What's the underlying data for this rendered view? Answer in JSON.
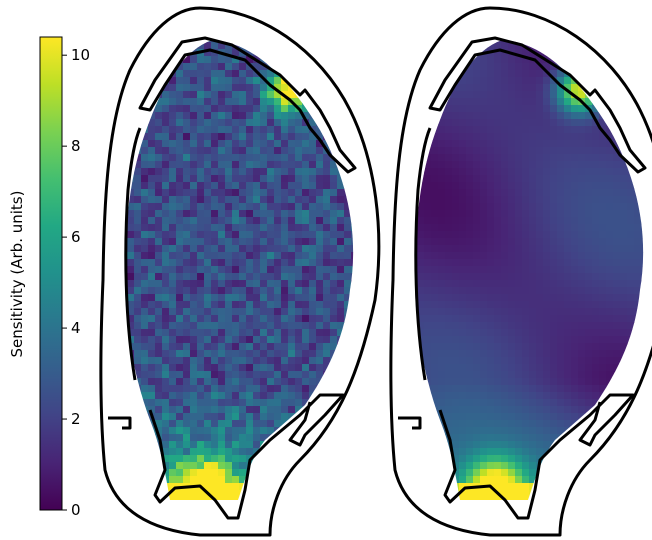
{
  "chart_data": {
    "type": "heatmap",
    "title": "",
    "panels": [
      {
        "name": "",
        "description_values": "sensitivity map, noisy pattern",
        "value_range": [
          0,
          10.4
        ],
        "hotspots": [
          {
            "location": "upper-right divertor corner",
            "value": 10
          },
          {
            "location": "lower divertor",
            "value": 10
          }
        ],
        "typical_value": 2
      },
      {
        "name": "",
        "description_values": "sensitivity map, smooth pattern",
        "value_range": [
          0,
          10.4
        ],
        "hotspots": [
          {
            "location": "upper-right divertor corner",
            "value": 10
          },
          {
            "location": "lower divertor",
            "value": 10
          }
        ],
        "typical_value": 1.5
      }
    ],
    "colorbar": {
      "label": "Sensitivity (Arb. units)",
      "colormap": "viridis",
      "range": [
        0,
        10.4
      ],
      "ticks": [
        0,
        2,
        4,
        6,
        8,
        10
      ],
      "tick_labels": [
        "0",
        "2",
        "4",
        "6",
        "8",
        "10"
      ]
    },
    "grid": false
  }
}
